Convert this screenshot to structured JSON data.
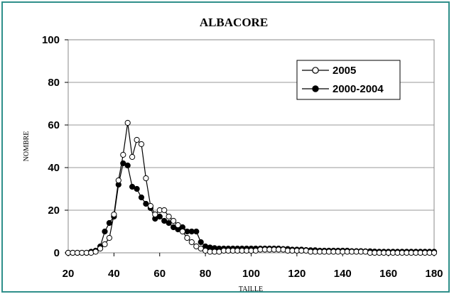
{
  "chart_data": {
    "type": "line",
    "title": "ALBACORE",
    "xlabel": "TAILLE",
    "ylabel": "NOMBRE",
    "xlim": [
      20,
      180
    ],
    "ylim": [
      0,
      100
    ],
    "xticks": [
      20,
      40,
      60,
      80,
      100,
      120,
      140,
      160,
      180
    ],
    "yticks": [
      0,
      20,
      40,
      60,
      80,
      100
    ],
    "grid": "horizontal",
    "legend_position": "top-right",
    "series": [
      {
        "name": "2005",
        "marker": "open-circle",
        "color": "#000000",
        "x": [
          20,
          22,
          24,
          26,
          28,
          30,
          32,
          34,
          36,
          38,
          40,
          42,
          44,
          46,
          48,
          50,
          52,
          54,
          56,
          58,
          60,
          62,
          64,
          66,
          68,
          70,
          72,
          74,
          76,
          78,
          80,
          82,
          84,
          86,
          88,
          90,
          92,
          94,
          96,
          98,
          100,
          102,
          104,
          106,
          108,
          110,
          112,
          114,
          116,
          118,
          120,
          122,
          124,
          126,
          128,
          130,
          132,
          134,
          136,
          138,
          140,
          142,
          144,
          146,
          148,
          150,
          152,
          154,
          156,
          158,
          160,
          162,
          164,
          166,
          168,
          170,
          172,
          174,
          176,
          178,
          180
        ],
        "y": [
          0,
          0,
          0,
          0,
          0,
          0,
          0.5,
          2,
          4,
          7,
          18,
          34,
          46,
          61,
          45,
          53,
          51,
          35,
          22,
          18,
          20,
          20,
          17,
          15,
          13,
          10,
          7,
          5,
          3,
          2,
          1,
          0.5,
          0.5,
          0.5,
          1,
          1,
          1,
          1,
          1,
          1,
          1,
          1,
          1.5,
          1.5,
          1.5,
          1.5,
          1.5,
          1.5,
          1,
          1,
          1,
          1,
          1,
          0.5,
          0.5,
          0.5,
          0.5,
          0.5,
          0.5,
          0.5,
          0.5,
          0.5,
          0.5,
          0.5,
          0.5,
          0.5,
          0,
          0,
          0,
          0,
          0,
          0,
          0,
          0,
          0,
          0,
          0,
          0,
          0,
          0,
          0
        ]
      },
      {
        "name": "2000-2004",
        "marker": "filled-circle",
        "color": "#000000",
        "x": [
          20,
          22,
          24,
          26,
          28,
          30,
          32,
          34,
          36,
          38,
          40,
          42,
          44,
          46,
          48,
          50,
          52,
          54,
          56,
          58,
          60,
          62,
          64,
          66,
          68,
          70,
          72,
          74,
          76,
          78,
          80,
          82,
          84,
          86,
          88,
          90,
          92,
          94,
          96,
          98,
          100,
          102,
          104,
          106,
          108,
          110,
          112,
          114,
          116,
          118,
          120,
          122,
          124,
          126,
          128,
          130,
          132,
          134,
          136,
          138,
          140,
          142,
          144,
          146,
          148,
          150,
          152,
          154,
          156,
          158,
          160,
          162,
          164,
          166,
          168,
          170,
          172,
          174,
          176,
          178,
          180
        ],
        "y": [
          0,
          0,
          0,
          0,
          0,
          0.5,
          1,
          3,
          10,
          14,
          17,
          32,
          42,
          41,
          31,
          30,
          26,
          23,
          21,
          16,
          17,
          15,
          14,
          12,
          11,
          12,
          10,
          10,
          10,
          5,
          3,
          2.5,
          2.2,
          2,
          2,
          2,
          2,
          2,
          2,
          2,
          2,
          2,
          2,
          2,
          2,
          2,
          2,
          1.8,
          1.8,
          1.5,
          1.5,
          1.5,
          1.3,
          1.2,
          1.2,
          1,
          1,
          1,
          1,
          1,
          1,
          1,
          0.8,
          0.8,
          0.8,
          0.7,
          0.7,
          0.6,
          0.5,
          0.5,
          0.5,
          0.5,
          0.5,
          0.5,
          0.5,
          0.5,
          0.5,
          0.5,
          0.5,
          0.5,
          0.5
        ]
      }
    ]
  }
}
